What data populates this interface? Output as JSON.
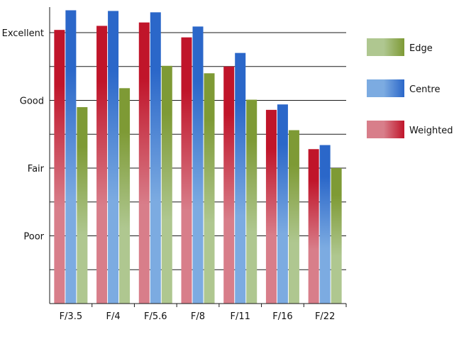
{
  "chart_data": {
    "type": "bar",
    "title": "",
    "xlabel": "",
    "ylabel": "",
    "categories": [
      "F/3.5",
      "F/4",
      "F/5.6",
      "F/8",
      "F/11",
      "F/16",
      "F/22"
    ],
    "ylim": [
      0,
      4
    ],
    "yticks": [
      {
        "value": 1,
        "label": "Poor"
      },
      {
        "value": 2,
        "label": "Fair"
      },
      {
        "value": 3,
        "label": "Good"
      },
      {
        "value": 4,
        "label": "Excellent"
      }
    ],
    "grid": true,
    "legend_position": "right",
    "series": [
      {
        "name": "Weighted",
        "color": "#c0152a",
        "values": [
          4.04,
          4.1,
          4.15,
          3.93,
          3.5,
          2.86,
          2.28
        ]
      },
      {
        "name": "Centre",
        "color": "#2b67c9",
        "values": [
          4.33,
          4.32,
          4.3,
          4.09,
          3.7,
          2.94,
          2.34
        ]
      },
      {
        "name": "Edge",
        "color": "#7e9a35",
        "values": [
          2.9,
          3.18,
          3.51,
          3.4,
          3.01,
          2.56,
          2.0
        ]
      }
    ],
    "legend_order": [
      "Edge",
      "Centre",
      "Weighted"
    ]
  }
}
